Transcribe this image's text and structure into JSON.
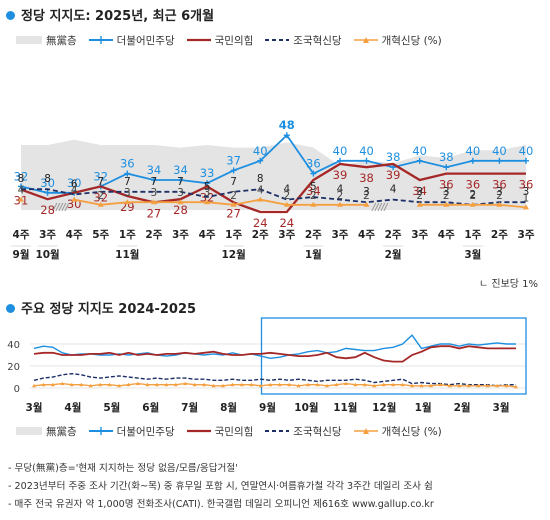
{
  "section1": {
    "title": "정당 지지도: 2025년, 최근 6개월"
  },
  "section2": {
    "title": "주요 정당 지지도 2024-2025"
  },
  "legend": {
    "none": "無黨층",
    "dp": "더불어민주당",
    "ppp": "국민의힘",
    "rk": "조국혁신당",
    "reform": "개혁신당 (%)"
  },
  "colors": {
    "dp": "#1e8fe0",
    "ppp": "#a52828",
    "rk": "#1c2f66",
    "reform": "#f5a040",
    "none": "#e4e4e4",
    "accent": "#1e8fe0"
  },
  "note": "ㄴ 진보당 1%",
  "footnotes": [
    "- 무당(無黨)층='현재 지지하는 정당 없음/모름/응답거절'",
    "- 2023년부터 주중 조사 기간(화~목) 중 휴무일 포함 시, 연말연시·여름휴가철 각각 3주간 데일리 조사 쉼",
    "- 매주 전국 유권자 약 1,000명 전화조사(CATI). 한국갤럽 데일리 오피니언 제616호 www.gallup.co.kr"
  ],
  "chart_data": [
    {
      "type": "line",
      "title": "정당 지지도: 2025년, 최근 6개월",
      "week_labels": [
        "4주",
        "3주",
        "4주",
        "5주",
        "1주",
        "2주",
        "3주",
        "4주",
        "1주",
        "2주",
        "3주",
        "2주",
        "3주",
        "4주",
        "2주",
        "3주",
        "4주",
        "1주",
        "2주",
        "3주"
      ],
      "month_labels": [
        {
          "label": "9월",
          "at": 0
        },
        {
          "label": "10월",
          "at": 1
        },
        {
          "label": "11월",
          "at": 4
        },
        {
          "label": "12월",
          "at": 8
        },
        {
          "label": "1월",
          "at": 11
        },
        {
          "label": "2월",
          "at": 14
        },
        {
          "label": "3월",
          "at": 17
        }
      ],
      "series": [
        {
          "name": "더불어민주당",
          "key": "dp",
          "values": [
            32,
            30,
            30,
            32,
            36,
            34,
            34,
            33,
            37,
            40,
            48,
            36,
            40,
            40,
            38,
            40,
            38,
            40,
            40,
            40
          ]
        },
        {
          "name": "국민의힘",
          "key": "ppp",
          "values": [
            31,
            28,
            30,
            32,
            29,
            27,
            28,
            32,
            27,
            24,
            24,
            34,
            39,
            38,
            39,
            34,
            36,
            36,
            36,
            36
          ]
        },
        {
          "name": "조국혁신당",
          "key": "rk",
          "values": [
            8,
            8,
            6,
            7,
            7,
            7,
            7,
            5,
            7,
            8,
            4,
            5,
            4,
            3,
            4,
            3,
            3,
            2,
            3,
            3
          ]
        },
        {
          "name": "개혁신당",
          "key": "reform",
          "values": [
            4,
            null,
            4,
            2,
            3,
            3,
            3,
            3,
            2,
            4,
            2,
            2,
            2,
            2,
            null,
            2,
            2,
            2,
            2,
            1
          ]
        }
      ],
      "none_area": [
        25,
        25,
        27,
        25,
        25,
        25,
        24,
        25,
        24,
        24,
        26,
        24,
        17,
        19,
        18,
        21,
        20,
        23,
        23,
        25
      ],
      "hatch_marks": [
        1,
        13
      ]
    },
    {
      "type": "line",
      "title": "주요 정당 지지도 2024-2025",
      "x_labels": [
        "3월",
        "4월",
        "5월",
        "6월",
        "7월",
        "8월",
        "9월",
        "10월",
        "11월",
        "12월",
        "1월",
        "2월",
        "3월"
      ],
      "ylim": [
        0,
        40
      ],
      "y_ticks": [
        0,
        20,
        40
      ],
      "highlight": {
        "from": "9월",
        "to": "3월"
      },
      "series": [
        {
          "name": "더불어민주당",
          "key": "dp",
          "values": [
            36,
            38,
            37,
            32,
            30,
            31,
            31,
            30,
            30,
            31,
            30,
            31,
            32,
            30,
            29,
            30,
            32,
            31,
            30,
            31,
            30,
            32,
            30,
            31,
            29,
            27,
            28,
            30,
            31,
            33,
            34,
            32,
            33,
            36,
            35,
            34,
            34,
            36,
            37,
            40,
            48,
            36,
            38,
            40,
            40,
            38,
            40,
            39,
            40,
            41,
            40,
            40
          ]
        },
        {
          "name": "국민의힘",
          "key": "ppp",
          "values": [
            31,
            32,
            32,
            30,
            30,
            30,
            31,
            31,
            32,
            30,
            32,
            30,
            31,
            30,
            31,
            31,
            32,
            31,
            32,
            33,
            31,
            30,
            30,
            31,
            31,
            32,
            31,
            30,
            29,
            29,
            30,
            32,
            28,
            27,
            28,
            32,
            28,
            25,
            24,
            24,
            30,
            33,
            37,
            38,
            38,
            36,
            38,
            37,
            36,
            36,
            36,
            36
          ]
        },
        {
          "name": "조국혁신당",
          "key": "rk",
          "values": [
            7,
            9,
            10,
            12,
            13,
            12,
            10,
            9,
            10,
            11,
            10,
            9,
            8,
            9,
            8,
            9,
            9,
            8,
            8,
            7,
            7,
            8,
            7,
            7,
            8,
            7,
            8,
            7,
            8,
            7,
            6,
            7,
            7,
            7,
            8,
            7,
            5,
            6,
            7,
            8,
            4,
            5,
            4,
            4,
            3,
            4,
            3,
            3,
            3,
            2,
            3,
            3
          ]
        },
        {
          "name": "개혁신당",
          "key": "reform",
          "values": [
            2,
            3,
            3,
            4,
            3,
            3,
            2,
            3,
            3,
            2,
            3,
            4,
            3,
            3,
            3,
            3,
            4,
            3,
            3,
            2,
            2,
            3,
            3,
            3,
            2,
            3,
            3,
            3,
            2,
            3,
            3,
            2,
            3,
            4,
            3,
            3,
            2,
            3,
            3,
            3,
            2,
            2,
            2,
            3,
            2,
            2,
            2,
            2,
            2,
            2,
            2,
            1
          ]
        }
      ]
    }
  ]
}
